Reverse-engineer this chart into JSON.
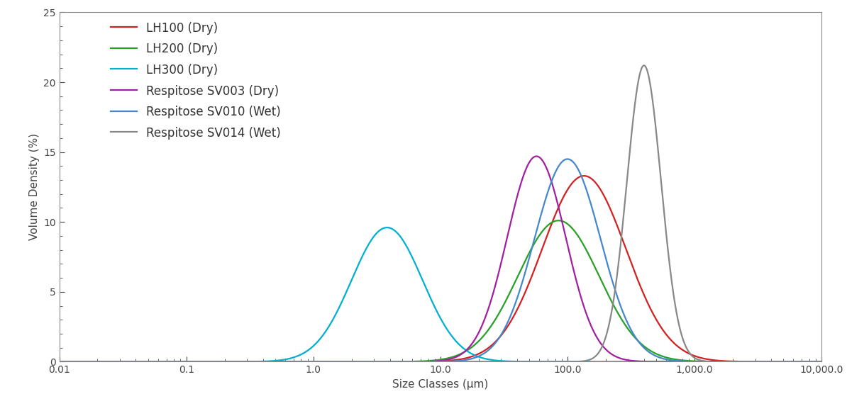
{
  "title": "",
  "xlabel": "Size Classes (μm)",
  "ylabel": "Volume Density (%)",
  "xlim_log": [
    0.01,
    10000.0
  ],
  "ylim": [
    0,
    25
  ],
  "yticks": [
    0,
    5,
    10,
    15,
    20,
    25
  ],
  "series": [
    {
      "label": "LH100 (Dry)",
      "color": "#d42020",
      "peak": 135,
      "sigma": 0.33,
      "amplitude": 13.3
    },
    {
      "label": "LH200 (Dry)",
      "color": "#28a028",
      "peak": 85,
      "sigma": 0.32,
      "amplitude": 10.1
    },
    {
      "label": "LH300 (Dry)",
      "color": "#00b0d0",
      "peak": 3.8,
      "sigma": 0.28,
      "amplitude": 9.6
    },
    {
      "label": "Respitose SV003 (Dry)",
      "color": "#a020a0",
      "peak": 57,
      "sigma": 0.23,
      "amplitude": 14.7
    },
    {
      "label": "Respitose SV010 (Wet)",
      "color": "#4488cc",
      "peak": 100,
      "sigma": 0.26,
      "amplitude": 14.5
    },
    {
      "label": "Respitose SV014 (Wet)",
      "color": "#888888",
      "peak": 400,
      "sigma": 0.135,
      "amplitude": 21.2
    }
  ],
  "legend_fontsize": 12,
  "axis_fontsize": 11,
  "tick_fontsize": 10,
  "linewidth": 1.6,
  "background_color": "#ffffff"
}
